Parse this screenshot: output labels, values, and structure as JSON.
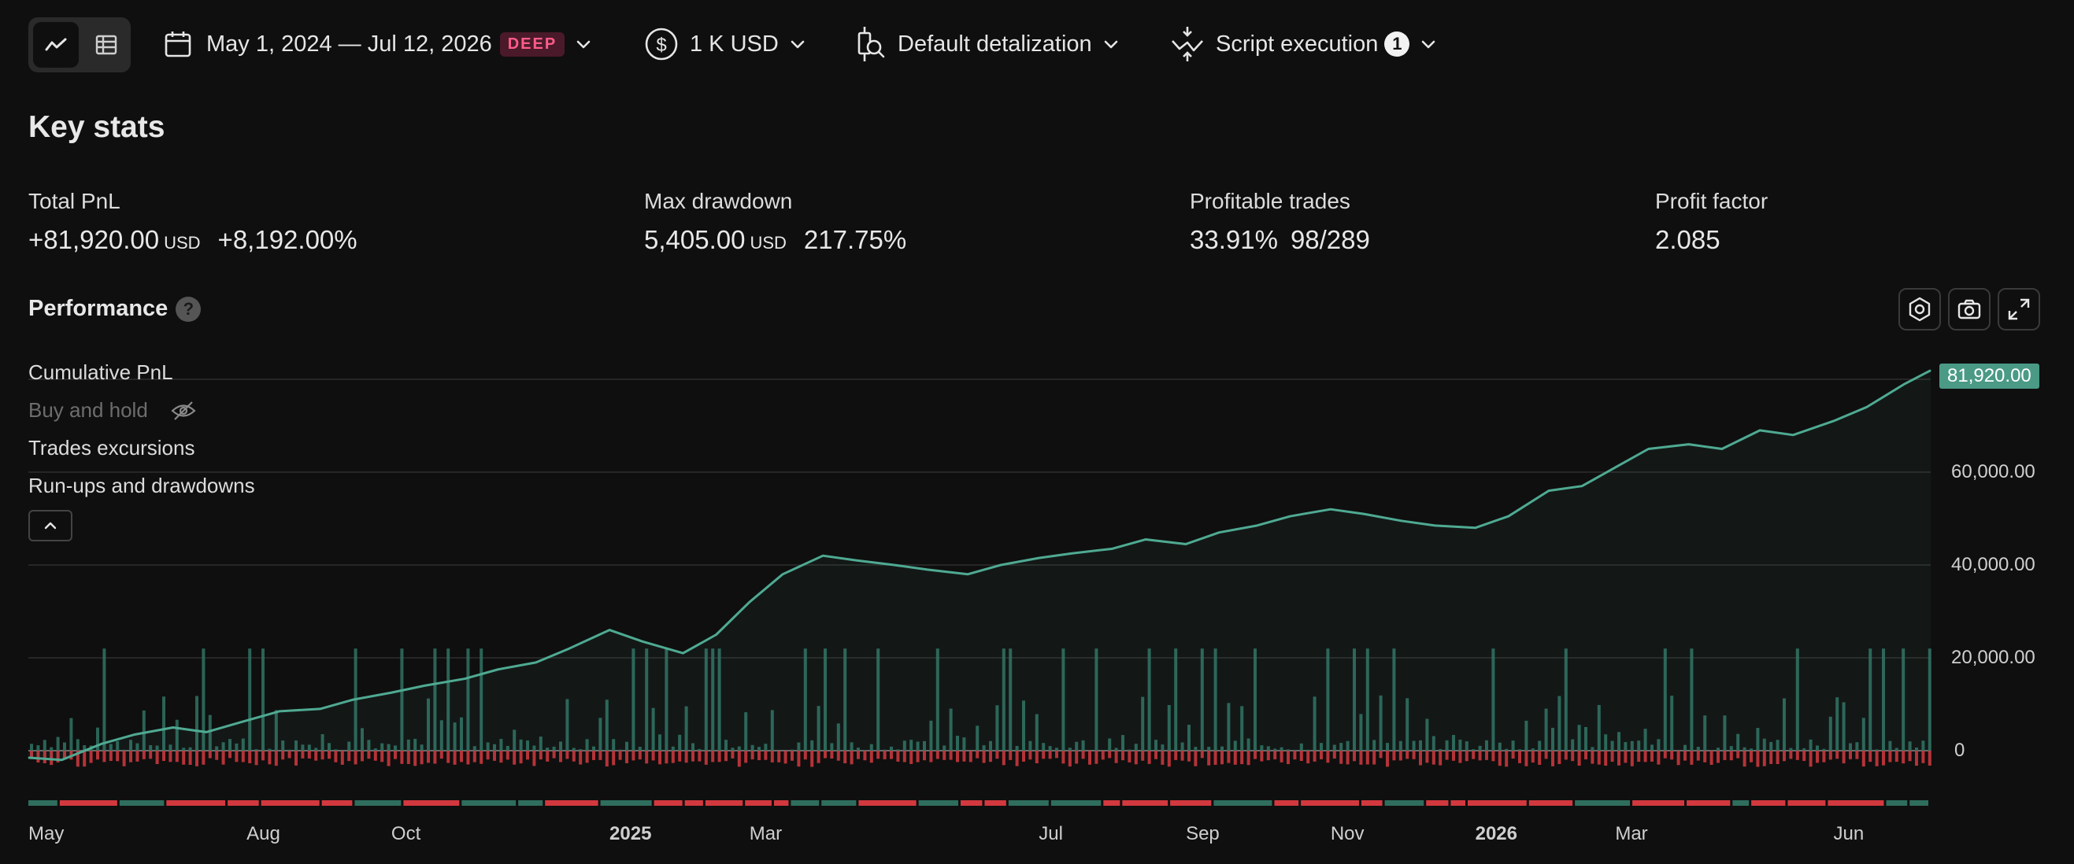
{
  "toolbar": {
    "date_range": "May 1, 2024 — Jul 12, 2026",
    "deep_badge": "DEEP",
    "capital": "1 K USD",
    "detalization": "Default detalization",
    "script_execution": "Script execution",
    "script_execution_count": "1"
  },
  "key_stats": {
    "title": "Key stats",
    "total_pnl": {
      "label": "Total PnL",
      "value": "+81,920.00",
      "currency": "USD",
      "percent": "+8,192.00%"
    },
    "max_drawdown": {
      "label": "Max drawdown",
      "value": "5,405.00",
      "currency": "USD",
      "percent": "217.75%"
    },
    "profitable_trades": {
      "label": "Profitable trades",
      "percent": "33.91%",
      "ratio": "98/289"
    },
    "profit_factor": {
      "label": "Profit factor",
      "value": "2.085"
    }
  },
  "performance": {
    "title": "Performance",
    "help": "?",
    "legend": [
      "Cumulative PnL",
      "Buy and hold",
      "Trades excursions",
      "Run-ups and drawdowns"
    ],
    "last_value_label": "81,920.00"
  },
  "colors": {
    "profit": "#4faa92",
    "loss": "#d2393f",
    "background": "#0f0f0f"
  },
  "chart_data": {
    "type": "line",
    "series": [
      {
        "name": "Cumulative PnL",
        "x": [
          "2024-05-01",
          "2024-05-15",
          "2024-06-01",
          "2024-06-15",
          "2024-07-01",
          "2024-07-15",
          "2024-08-01",
          "2024-08-15",
          "2024-09-01",
          "2024-09-15",
          "2024-10-01",
          "2024-10-15",
          "2024-11-01",
          "2024-11-15",
          "2024-12-01",
          "2024-12-15",
          "2025-01-01",
          "2025-01-15",
          "2025-02-01",
          "2025-02-15",
          "2025-03-01",
          "2025-03-15",
          "2025-04-01",
          "2025-04-15",
          "2025-05-01",
          "2025-05-15",
          "2025-06-01",
          "2025-06-15",
          "2025-07-01",
          "2025-07-15",
          "2025-08-01",
          "2025-08-15",
          "2025-09-01",
          "2025-09-15",
          "2025-10-01",
          "2025-10-15",
          "2025-11-01",
          "2025-11-15",
          "2025-12-01",
          "2025-12-15",
          "2026-01-01",
          "2026-01-15",
          "2026-02-01",
          "2026-02-15",
          "2026-03-01",
          "2026-03-15",
          "2026-04-01",
          "2026-04-15",
          "2026-05-01",
          "2026-05-15",
          "2026-06-01",
          "2026-06-15",
          "2026-07-01",
          "2026-07-12"
        ],
        "values": [
          -1500,
          -2000,
          1500,
          3500,
          5000,
          4000,
          6500,
          8500,
          9000,
          11000,
          12500,
          14000,
          15500,
          17500,
          19000,
          22000,
          26000,
          23500,
          21000,
          25000,
          32000,
          38000,
          42000,
          41000,
          40000,
          39000,
          38000,
          40000,
          41500,
          42500,
          43500,
          45500,
          44500,
          47000,
          48500,
          50500,
          52000,
          51000,
          49500,
          48500,
          48000,
          50500,
          56000,
          57000,
          61000,
          65000,
          66000,
          65000,
          69000,
          68000,
          71000,
          74000,
          79000,
          81920
        ]
      }
    ],
    "trade_excursions": {
      "profit_positive_max_approx": 22000,
      "loss_negative_max_approx": -3500
    },
    "y_ticks": [
      "0",
      "20,000.00",
      "40,000.00",
      "60,000.00"
    ],
    "x_ticks": [
      "May",
      "Aug",
      "Oct",
      "2025",
      "Mar",
      "Jul",
      "Sep",
      "Nov",
      "2026",
      "Mar",
      "Jun"
    ],
    "ylim": [
      -8000,
      85000
    ],
    "grid": true
  }
}
